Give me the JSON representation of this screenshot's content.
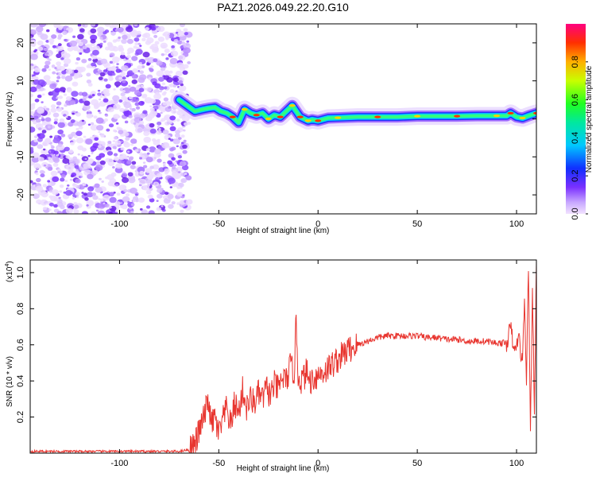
{
  "title": "PAZ1.2026.049.22.20.G10",
  "chart_data": [
    {
      "type": "heatmap",
      "xlabel": "Height of straight line (km)",
      "ylabel": "Frequency (Hz)",
      "xlim": [
        -145,
        110
      ],
      "ylim": [
        -25,
        25
      ],
      "x_ticks": [
        "-100",
        "-50",
        "0",
        "50",
        "100"
      ],
      "y_ticks": [
        "-20",
        "-10",
        "0",
        "10",
        "20"
      ],
      "noise_region": [
        -145,
        -68
      ],
      "ridge": {
        "x": [
          -70,
          -66,
          -62,
          -58,
          -55,
          -52,
          -49,
          -46,
          -43,
          -40,
          -37,
          -34,
          -31,
          -28,
          -25,
          -22,
          -19,
          -16,
          -13,
          -11,
          -9,
          -7,
          -5,
          -3,
          0,
          5,
          10,
          20,
          30,
          40,
          50,
          60,
          70,
          80,
          90,
          95,
          97,
          100,
          103,
          106,
          110
        ],
        "y": [
          5.0,
          3.5,
          2.0,
          2.5,
          2.8,
          3.0,
          2.0,
          1.5,
          0.5,
          -1.0,
          2.5,
          1.5,
          1.0,
          1.5,
          0.0,
          1.0,
          0.5,
          2.0,
          3.5,
          2.0,
          0.5,
          0.0,
          -0.5,
          -0.2,
          -0.5,
          0.2,
          0.3,
          0.5,
          0.5,
          0.5,
          0.7,
          0.7,
          0.7,
          0.8,
          0.8,
          0.8,
          1.5,
          0.5,
          0.2,
          0.8,
          1.5
        ]
      },
      "colorbar": {
        "label": "Normalized spectral amplitude",
        "min": 0,
        "max": 1,
        "ticks": [
          "0.0",
          "0.2",
          "0.4",
          "0.6",
          "0.8"
        ]
      }
    },
    {
      "type": "line",
      "xlabel": "Height of straight line (km)",
      "ylabel": "SNR (10 * v/v)",
      "scale_note": "(x10",
      "scale_exp": "4",
      "scale_close": ")",
      "xlim": [
        -145,
        110
      ],
      "ylim": [
        0,
        1.07
      ],
      "x_ticks": [
        "-100",
        "-50",
        "0",
        "50",
        "100"
      ],
      "y_ticks": [
        "0.2",
        "0.4",
        "0.6",
        "0.8",
        "1.0"
      ],
      "color": "#e8352f",
      "series_points": {
        "x": [
          -145,
          -100,
          -80,
          -70,
          -65,
          -62,
          -60,
          -58,
          -57,
          -55,
          -54,
          -52,
          -50,
          -48,
          -46,
          -44,
          -42,
          -40,
          -38,
          -36,
          -34,
          -32,
          -30,
          -28,
          -26,
          -24,
          -22,
          -20,
          -18,
          -16,
          -14,
          -12,
          -11,
          -10,
          -8,
          -6,
          -4,
          -2,
          0,
          5,
          10,
          15,
          20,
          25,
          30,
          35,
          40,
          45,
          50,
          55,
          60,
          65,
          70,
          75,
          80,
          85,
          90,
          95,
          97,
          99,
          101,
          103,
          104,
          105,
          106,
          107,
          108,
          109,
          110
        ],
        "y": [
          0.01,
          0.01,
          0.01,
          0.01,
          0.02,
          0.05,
          0.12,
          0.18,
          0.22,
          0.3,
          0.15,
          0.2,
          0.1,
          0.18,
          0.25,
          0.15,
          0.28,
          0.22,
          0.35,
          0.25,
          0.3,
          0.28,
          0.33,
          0.3,
          0.36,
          0.32,
          0.38,
          0.35,
          0.42,
          0.4,
          0.48,
          0.45,
          0.74,
          0.42,
          0.4,
          0.45,
          0.4,
          0.42,
          0.43,
          0.47,
          0.52,
          0.57,
          0.6,
          0.62,
          0.64,
          0.65,
          0.65,
          0.65,
          0.65,
          0.64,
          0.64,
          0.63,
          0.63,
          0.62,
          0.62,
          0.62,
          0.61,
          0.61,
          0.7,
          0.55,
          0.65,
          0.5,
          0.85,
          0.4,
          1.05,
          0.1,
          0.95,
          0.2,
          1.05
        ]
      }
    }
  ]
}
